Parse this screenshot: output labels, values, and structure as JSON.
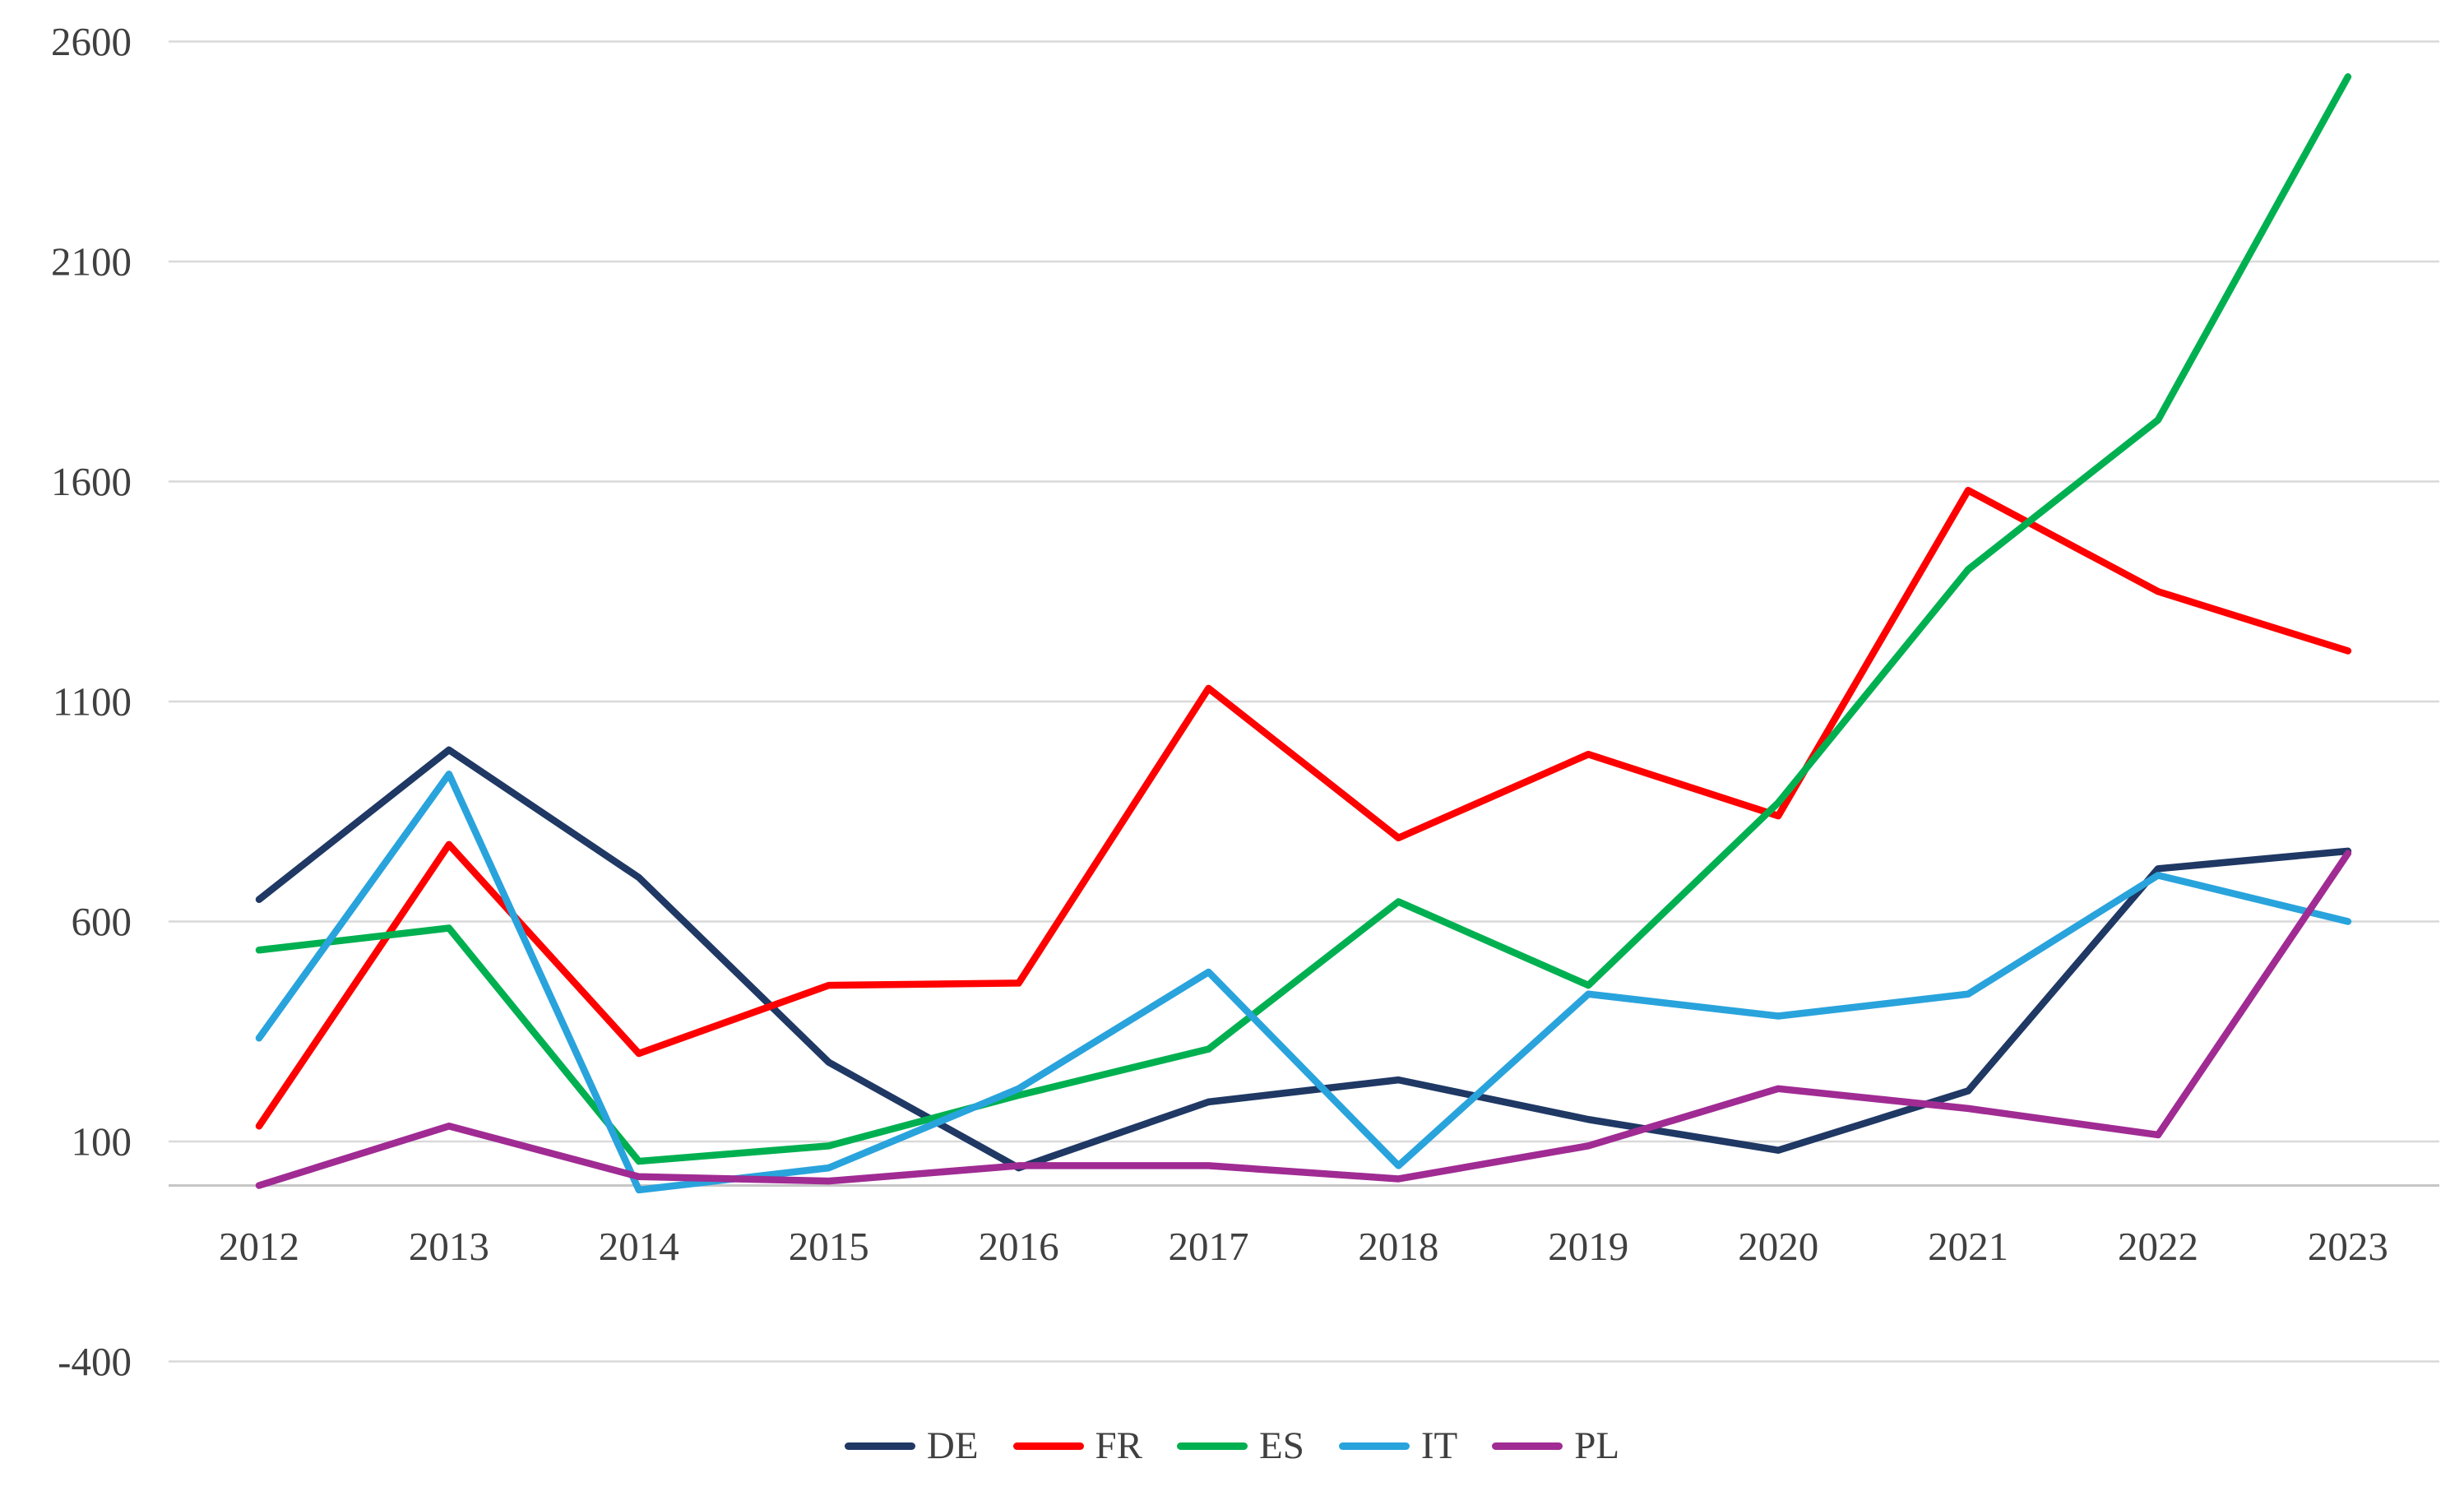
{
  "chart_data": {
    "type": "line",
    "title": "",
    "xlabel": "",
    "ylabel": "",
    "x": [
      2012,
      2013,
      2014,
      2015,
      2016,
      2017,
      2018,
      2019,
      2020,
      2021,
      2022,
      2023
    ],
    "ylim": [
      -400,
      2600
    ],
    "yticks": [
      -400,
      100,
      600,
      1100,
      1600,
      2100,
      2600
    ],
    "grid": "horizontal-only",
    "legend_position": "bottom-center",
    "gridline_color": "#d9d9d9",
    "axis_line_color": "#c6c6c6",
    "tick_label_color": "#404040",
    "series": [
      {
        "name": "DE",
        "color": "#1f3864",
        "values": [
          650,
          990,
          700,
          280,
          40,
          190,
          240,
          150,
          80,
          215,
          720,
          760
        ]
      },
      {
        "name": "FR",
        "color": "#ff0000",
        "values": [
          135,
          775,
          300,
          455,
          460,
          1130,
          790,
          980,
          840,
          1580,
          1350,
          1215
        ]
      },
      {
        "name": "ES",
        "color": "#00b050",
        "values": [
          535,
          585,
          55,
          90,
          205,
          310,
          645,
          455,
          870,
          1400,
          1740,
          2520
        ]
      },
      {
        "name": "IT",
        "color": "#29a3dc",
        "values": [
          335,
          935,
          -10,
          40,
          220,
          485,
          45,
          435,
          385,
          435,
          705,
          600
        ]
      },
      {
        "name": "PL",
        "color": "#a02b93",
        "values": [
          0,
          135,
          20,
          10,
          45,
          45,
          15,
          90,
          220,
          175,
          115,
          755
        ]
      }
    ]
  }
}
